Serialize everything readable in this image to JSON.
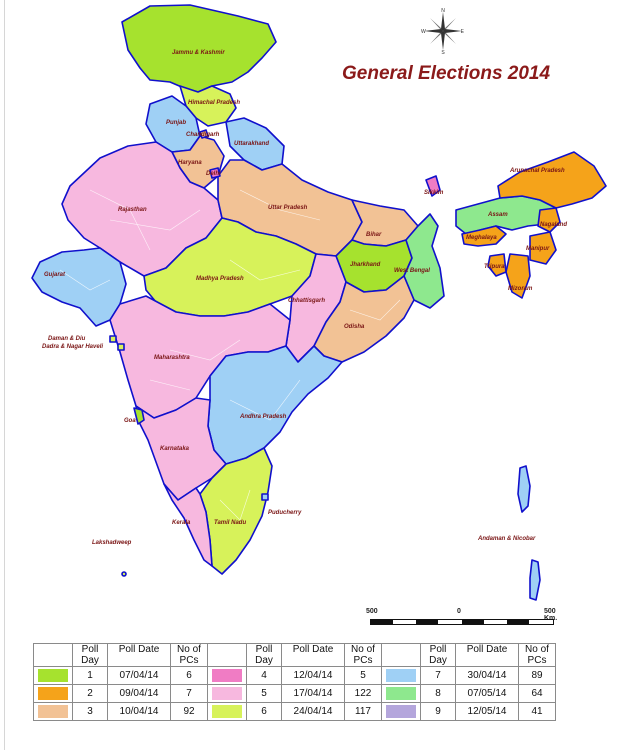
{
  "title": "General Elections 2014",
  "compass": {
    "n": "N",
    "e": "E",
    "s": "S",
    "w": "W"
  },
  "scale": {
    "left": "500",
    "mid": "0",
    "right": "500 Km."
  },
  "colors": {
    "phase1": "#a6e22e",
    "phase2": "#f5a31a",
    "phase3": "#f2c295",
    "phase4": "#f07cc4",
    "phase5": "#f7b8df",
    "phase6": "#d7f25a",
    "phase7": "#9fd0f5",
    "phase8": "#8ee88e",
    "phase9": "#b4a6dc",
    "border": "#1010cc"
  },
  "labels": [
    {
      "id": "jammu-kashmir",
      "text": "Jammu & Kashmir"
    },
    {
      "id": "himachal-pradesh",
      "text": "Himachal Pradesh"
    },
    {
      "id": "punjab",
      "text": "Punjab"
    },
    {
      "id": "chandigarh",
      "text": "Chandigarh"
    },
    {
      "id": "uttarakhand",
      "text": "Uttarakhand"
    },
    {
      "id": "haryana",
      "text": "Haryana"
    },
    {
      "id": "delhi",
      "text": "Delhi"
    },
    {
      "id": "rajasthan",
      "text": "Rajasthan"
    },
    {
      "id": "uttar-pradesh",
      "text": "Uttar Pradesh"
    },
    {
      "id": "arunachal-pradesh",
      "text": "Arunachal Pradesh"
    },
    {
      "id": "sikkim",
      "text": "Sikkim"
    },
    {
      "id": "assam",
      "text": "Assam"
    },
    {
      "id": "nagaland",
      "text": "Nagaland"
    },
    {
      "id": "meghalaya",
      "text": "Meghalaya"
    },
    {
      "id": "manipur",
      "text": "Manipur"
    },
    {
      "id": "bihar",
      "text": "Bihar"
    },
    {
      "id": "jharkhand",
      "text": "Jharkhand"
    },
    {
      "id": "west-bengal",
      "text": "West Bengal"
    },
    {
      "id": "tripura",
      "text": "Tripura"
    },
    {
      "id": "mizoram",
      "text": "Mizoram"
    },
    {
      "id": "gujarat",
      "text": "Gujarat"
    },
    {
      "id": "madhya-pradesh",
      "text": "Madhya Pradesh"
    },
    {
      "id": "chhattisgarh",
      "text": "Chhattisgarh"
    },
    {
      "id": "odisha",
      "text": "Odisha"
    },
    {
      "id": "daman-diu",
      "text": "Daman & Diu"
    },
    {
      "id": "dadra-nagar-haveli",
      "text": "Dadra & Nagar Haveli"
    },
    {
      "id": "maharashtra",
      "text": "Maharashtra"
    },
    {
      "id": "andhra-pradesh",
      "text": "Andhra Pradesh"
    },
    {
      "id": "goa",
      "text": "Goa"
    },
    {
      "id": "karnataka",
      "text": "Karnataka"
    },
    {
      "id": "tamil-nadu",
      "text": "Tamil Nadu"
    },
    {
      "id": "puducherry",
      "text": "Puducherry"
    },
    {
      "id": "kerala",
      "text": "Kerala"
    },
    {
      "id": "lakshadweep",
      "text": "Lakshadweep"
    },
    {
      "id": "andaman-nicobar",
      "text": "Andaman & Nicobar"
    }
  ],
  "legend": {
    "headers": {
      "day_line1": "Poll",
      "day_line2": "Day",
      "date": "Poll Date",
      "pcs_line1": "No of",
      "pcs_line2": "PCs"
    },
    "phases": [
      {
        "day": "1",
        "date": "07/04/14",
        "pcs": "6",
        "color": "#a6e22e"
      },
      {
        "day": "2",
        "date": "09/04/14",
        "pcs": "7",
        "color": "#f5a31a"
      },
      {
        "day": "3",
        "date": "10/04/14",
        "pcs": "92",
        "color": "#f2c295"
      },
      {
        "day": "4",
        "date": "12/04/14",
        "pcs": "5",
        "color": "#f07cc4"
      },
      {
        "day": "5",
        "date": "17/04/14",
        "pcs": "122",
        "color": "#f7b8df"
      },
      {
        "day": "6",
        "date": "24/04/14",
        "pcs": "117",
        "color": "#d7f25a"
      },
      {
        "day": "7",
        "date": "30/04/14",
        "pcs": "89",
        "color": "#9fd0f5"
      },
      {
        "day": "8",
        "date": "07/05/14",
        "pcs": "64",
        "color": "#8ee88e"
      },
      {
        "day": "9",
        "date": "12/05/14",
        "pcs": "41",
        "color": "#b4a6dc"
      }
    ]
  }
}
